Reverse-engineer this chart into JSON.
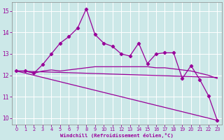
{
  "xlabel": "Windchill (Refroidissement éolien,°C)",
  "bg_color": "#cce8e8",
  "grid_color": "#b8dada",
  "line_color": "#990099",
  "ylim": [
    9.7,
    15.4
  ],
  "xlim": [
    -0.5,
    23.5
  ],
  "yticks": [
    10,
    11,
    12,
    13,
    14,
    15
  ],
  "xticks": [
    0,
    1,
    2,
    3,
    4,
    5,
    6,
    7,
    8,
    9,
    10,
    11,
    12,
    13,
    14,
    15,
    16,
    17,
    18,
    19,
    20,
    21,
    22,
    23
  ],
  "line1_x": [
    0,
    1,
    2,
    3,
    4,
    5,
    6,
    7,
    8,
    9,
    10,
    11,
    12,
    13,
    14,
    15,
    16,
    17,
    18,
    19,
    20,
    21,
    22,
    23
  ],
  "line1_y": [
    12.2,
    12.2,
    12.1,
    12.5,
    13.0,
    13.5,
    13.8,
    14.2,
    15.1,
    13.9,
    13.5,
    13.35,
    13.0,
    12.9,
    13.5,
    12.55,
    13.0,
    13.05,
    13.05,
    11.85,
    12.45,
    11.8,
    11.05,
    9.9
  ],
  "line2_x": [
    0,
    1,
    2,
    3,
    4,
    5,
    6,
    7,
    8,
    9,
    10,
    11,
    12,
    13,
    14,
    15,
    16,
    17,
    18,
    19,
    20,
    21,
    22,
    23
  ],
  "line2_y": [
    12.2,
    12.2,
    12.1,
    12.2,
    12.25,
    12.2,
    12.25,
    12.3,
    12.35,
    12.4,
    12.4,
    12.4,
    12.4,
    12.4,
    12.4,
    12.4,
    12.35,
    12.35,
    12.3,
    12.25,
    12.2,
    12.1,
    12.0,
    11.85
  ],
  "line3_x": [
    0,
    23
  ],
  "line3_y": [
    12.2,
    9.9
  ],
  "line4_x": [
    0,
    23
  ],
  "line4_y": [
    12.2,
    11.9
  ]
}
